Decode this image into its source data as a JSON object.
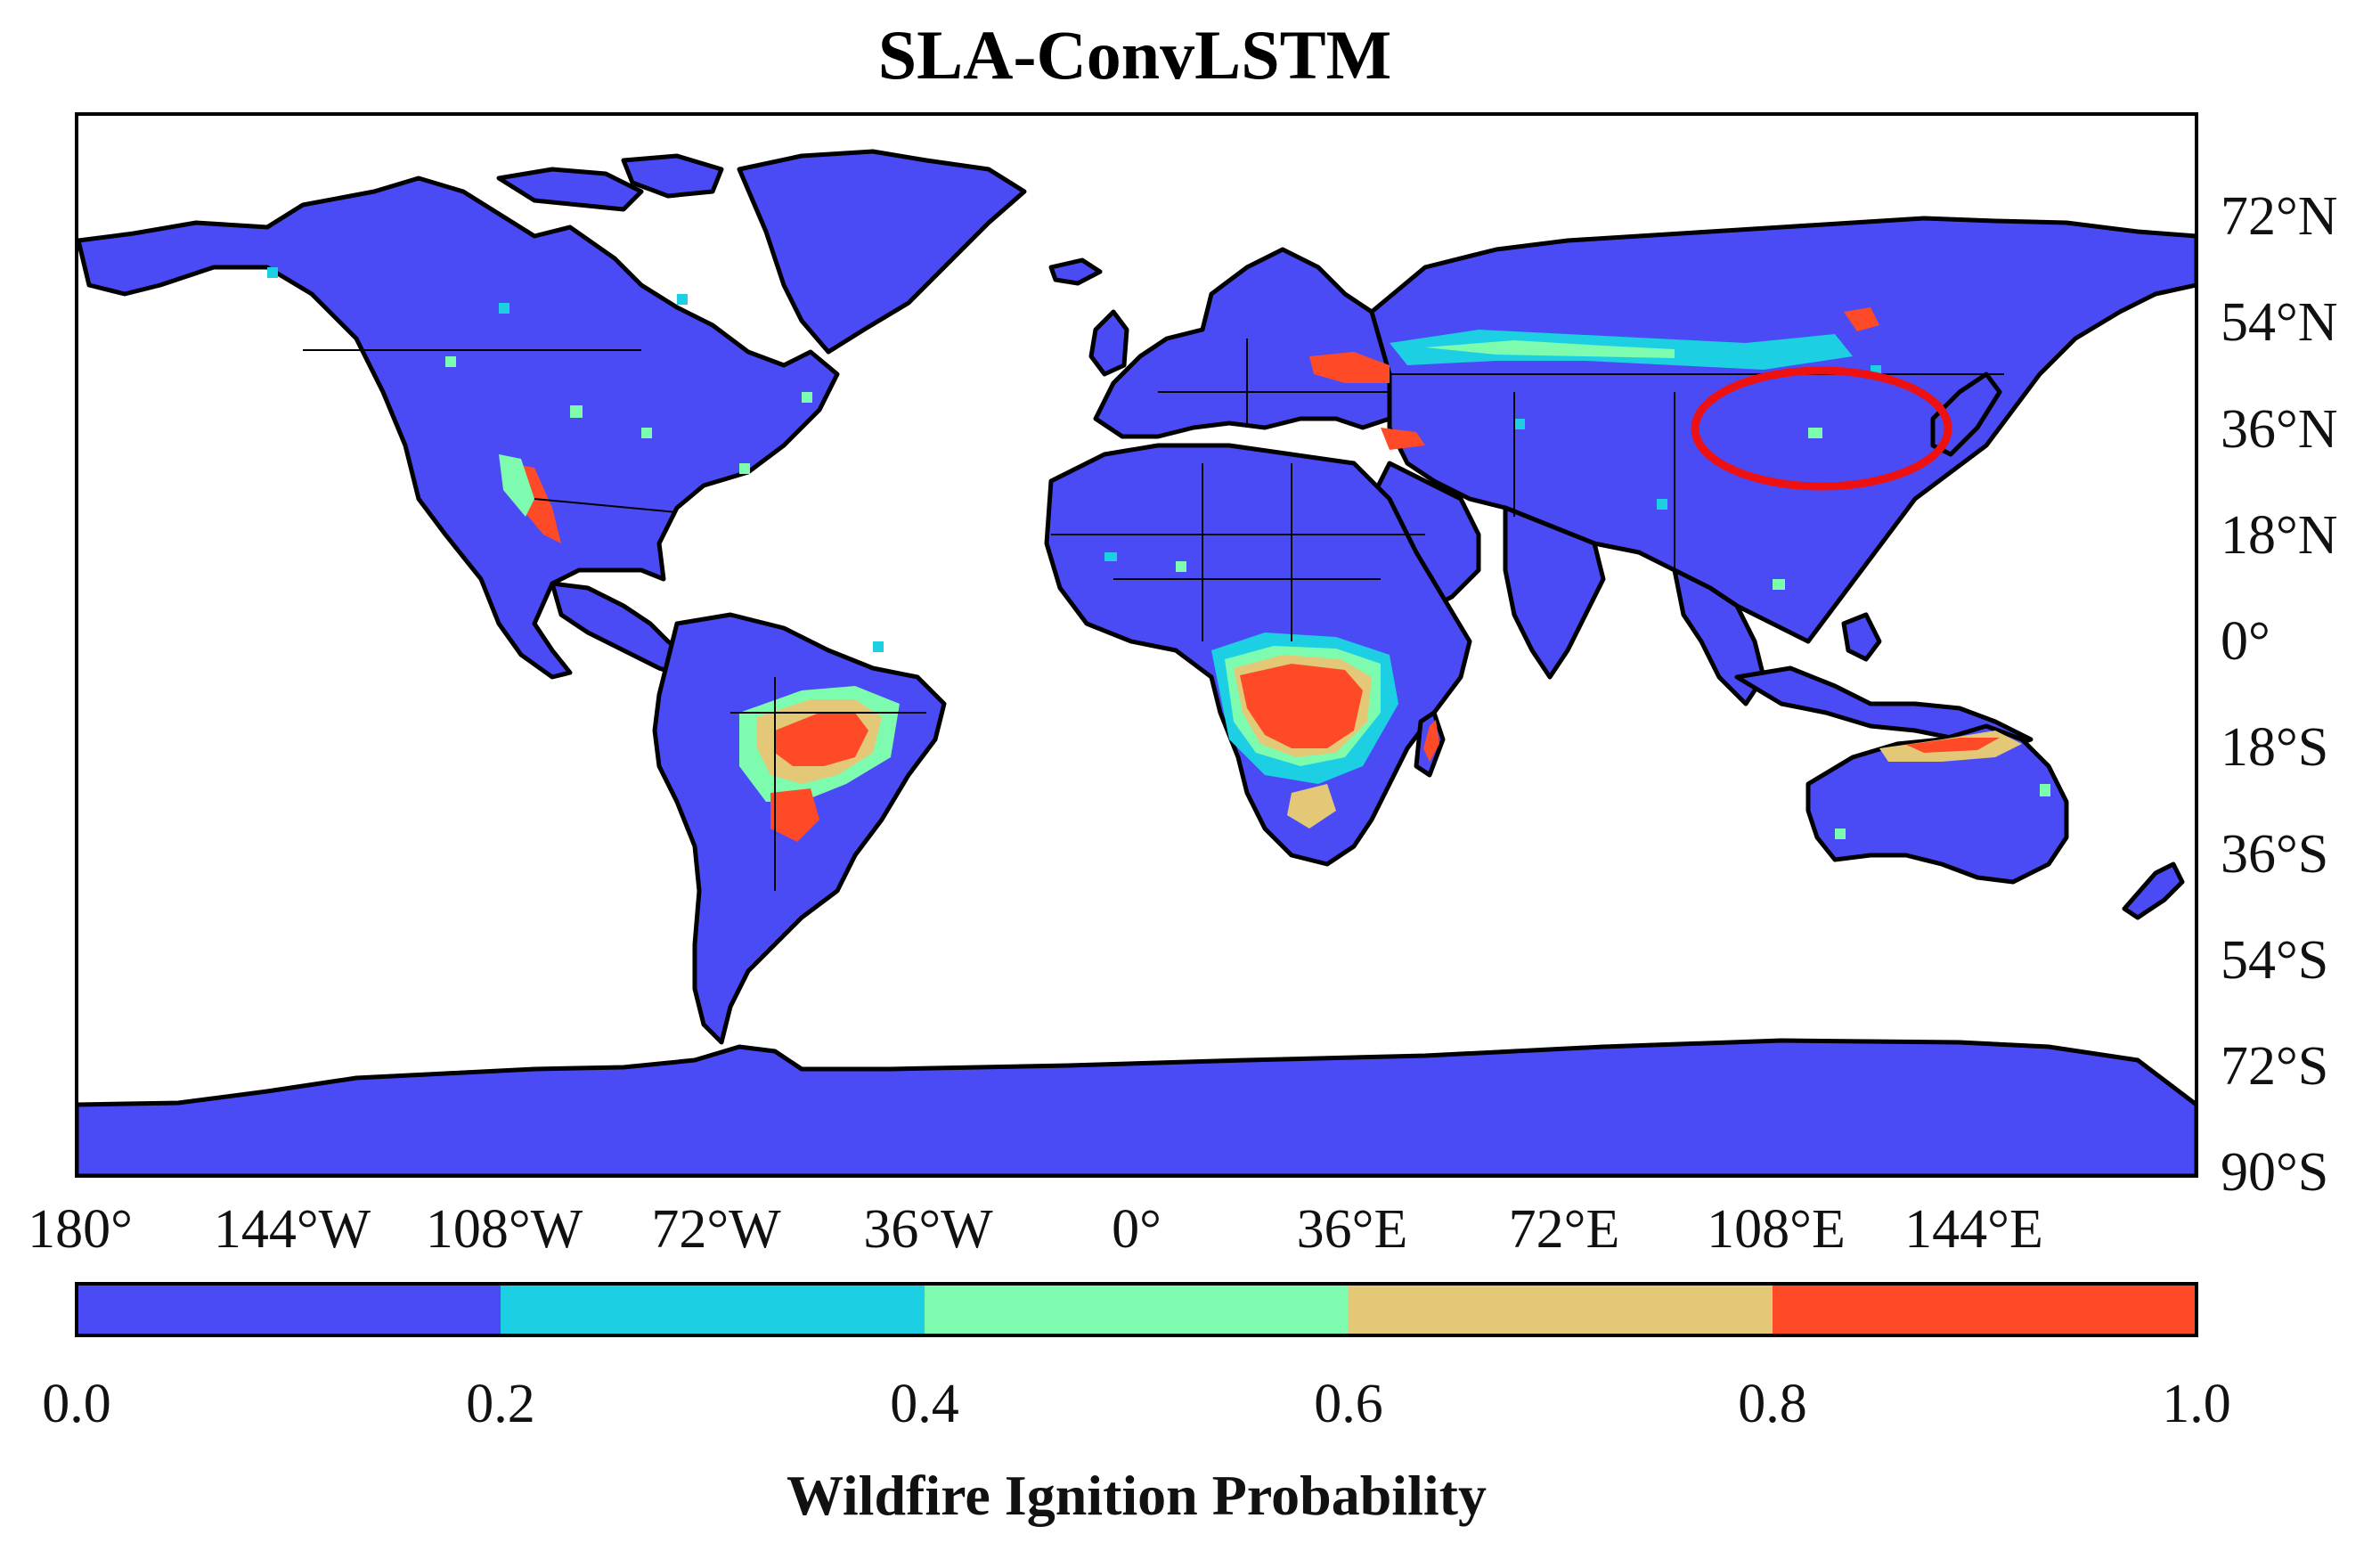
{
  "title": "SLA-ConvLSTM",
  "map": {
    "lon_labels": [
      "180°",
      "144°W",
      "108°W",
      "72°W",
      "36°W",
      "0°",
      "36°E",
      "72°E",
      "108°E",
      "144°E"
    ],
    "lat_labels": [
      "72°N",
      "54°N",
      "36°N",
      "18°N",
      "0°",
      "18°S",
      "36°S",
      "54°S",
      "72°S",
      "90°S"
    ],
    "highlight": "red-ellipse-north-china"
  },
  "colorbar": {
    "label": "Wildfire Ignition Probability",
    "ticks": [
      "0.0",
      "0.2",
      "0.4",
      "0.6",
      "0.8",
      "1.0"
    ],
    "bins": [
      {
        "range": [
          0.0,
          0.2
        ],
        "color": "#4b4bf5"
      },
      {
        "range": [
          0.2,
          0.4
        ],
        "color": "#1ccfe3"
      },
      {
        "range": [
          0.4,
          0.6
        ],
        "color": "#7dfcb0"
      },
      {
        "range": [
          0.6,
          0.8
        ],
        "color": "#e3c977"
      },
      {
        "range": [
          0.8,
          1.0
        ],
        "color": "#ff4a28"
      }
    ]
  },
  "colors": {
    "land_base": "#4b4bf5",
    "ocean": "#ffffff",
    "highlight_ellipse": "#ee1111"
  }
}
